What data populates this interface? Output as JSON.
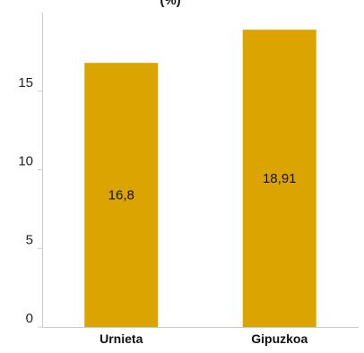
{
  "chart_data": {
    "type": "bar",
    "title": "(%)",
    "categories": [
      "Urnieta",
      "Gipuzkoa"
    ],
    "values": [
      16.8,
      18.91
    ],
    "value_labels": [
      "16,8",
      "18,91"
    ],
    "xlabel": "",
    "ylabel": "",
    "ylim": [
      0,
      20
    ],
    "yticks": [
      0,
      5,
      10,
      15
    ],
    "grid": false,
    "legend": "none",
    "colors": {
      "bar": "#DBA400",
      "axis": "#cccccc"
    }
  }
}
